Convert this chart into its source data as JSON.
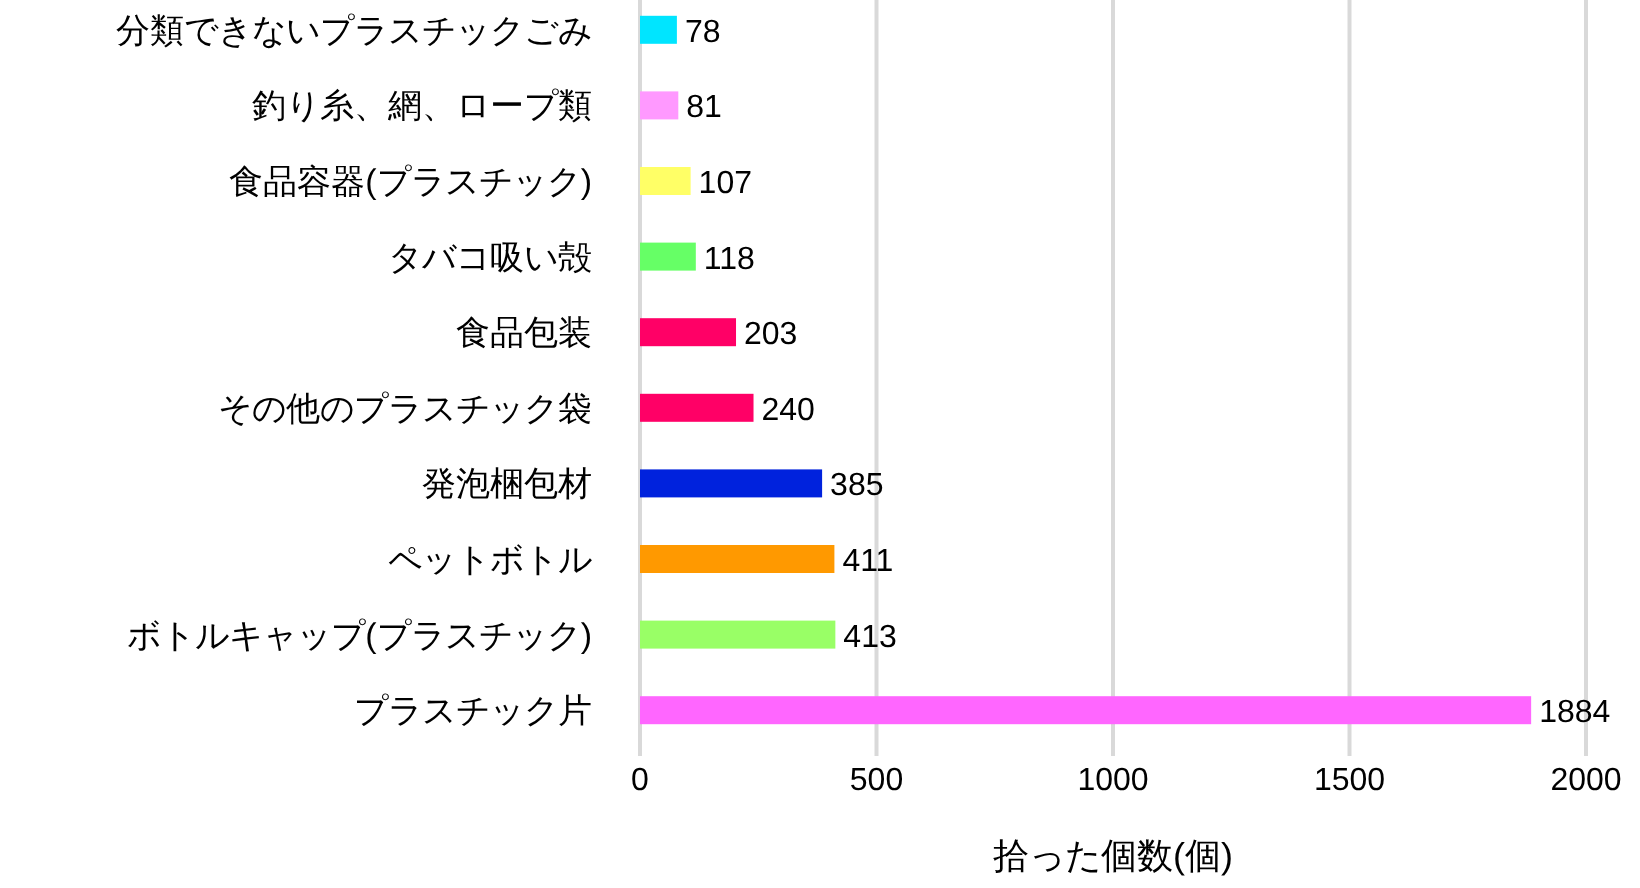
{
  "chart_data": {
    "type": "bar",
    "orientation": "horizontal",
    "xlabel": "拾った個数(個)",
    "categories": [
      "分類できないプラスチックごみ",
      "釣り糸、網、ロープ類",
      "食品容器(プラスチック)",
      "タバコ吸い殻",
      "食品包装",
      "その他のプラスチック袋",
      "発泡梱包材",
      "ペットボトル",
      "ボトルキャップ(プラスチック)",
      "プラスチック片"
    ],
    "values": [
      78,
      81,
      107,
      118,
      203,
      240,
      385,
      411,
      413,
      1884
    ],
    "colors": [
      "#00e5ff",
      "#ff99ff",
      "#ffff66",
      "#66ff66",
      "#ff0066",
      "#ff0066",
      "#0022dd",
      "#ff9900",
      "#99ff66",
      "#ff66ff"
    ],
    "xlim": [
      0,
      2000
    ],
    "xticks": [
      0,
      500,
      1000,
      1500,
      2000
    ],
    "grid": "x",
    "data_labels": true
  }
}
